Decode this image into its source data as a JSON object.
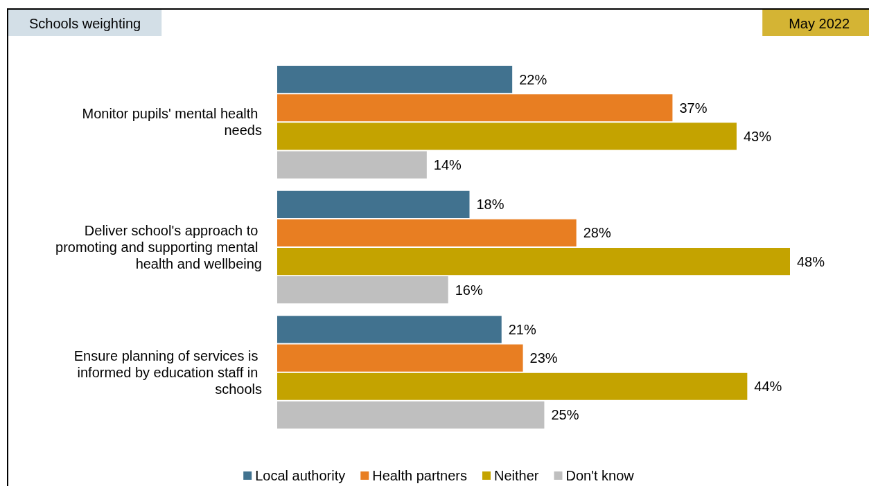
{
  "chart_data": {
    "type": "bar",
    "orientation": "horizontal",
    "title": "Schools weighting",
    "subtitle": "May 2022",
    "categories": [
      "Monitor pupils' mental health needs",
      "Deliver school's approach to promoting and supporting mental health and wellbeing",
      "Ensure planning of services is informed by education staff in schools"
    ],
    "series": [
      {
        "name": "Local authority",
        "color": "#41728f",
        "values": [
          22,
          18,
          21
        ],
        "value_labels": [
          "22%",
          "18%",
          "21%"
        ]
      },
      {
        "name": "Health partners",
        "color": "#e87e22",
        "values": [
          37,
          28,
          23
        ],
        "value_labels": [
          "37%",
          "28%",
          "23%"
        ]
      },
      {
        "name": "Neither",
        "color": "#c4a300",
        "values": [
          43,
          48,
          44
        ],
        "value_labels": [
          "43%",
          "48%",
          "44%"
        ]
      },
      {
        "name": "Don't know",
        "color": "#bfbfbf",
        "values": [
          14,
          16,
          25
        ],
        "value_labels": [
          "14%",
          "16%",
          "25%"
        ]
      }
    ],
    "legend": "bottom"
  }
}
